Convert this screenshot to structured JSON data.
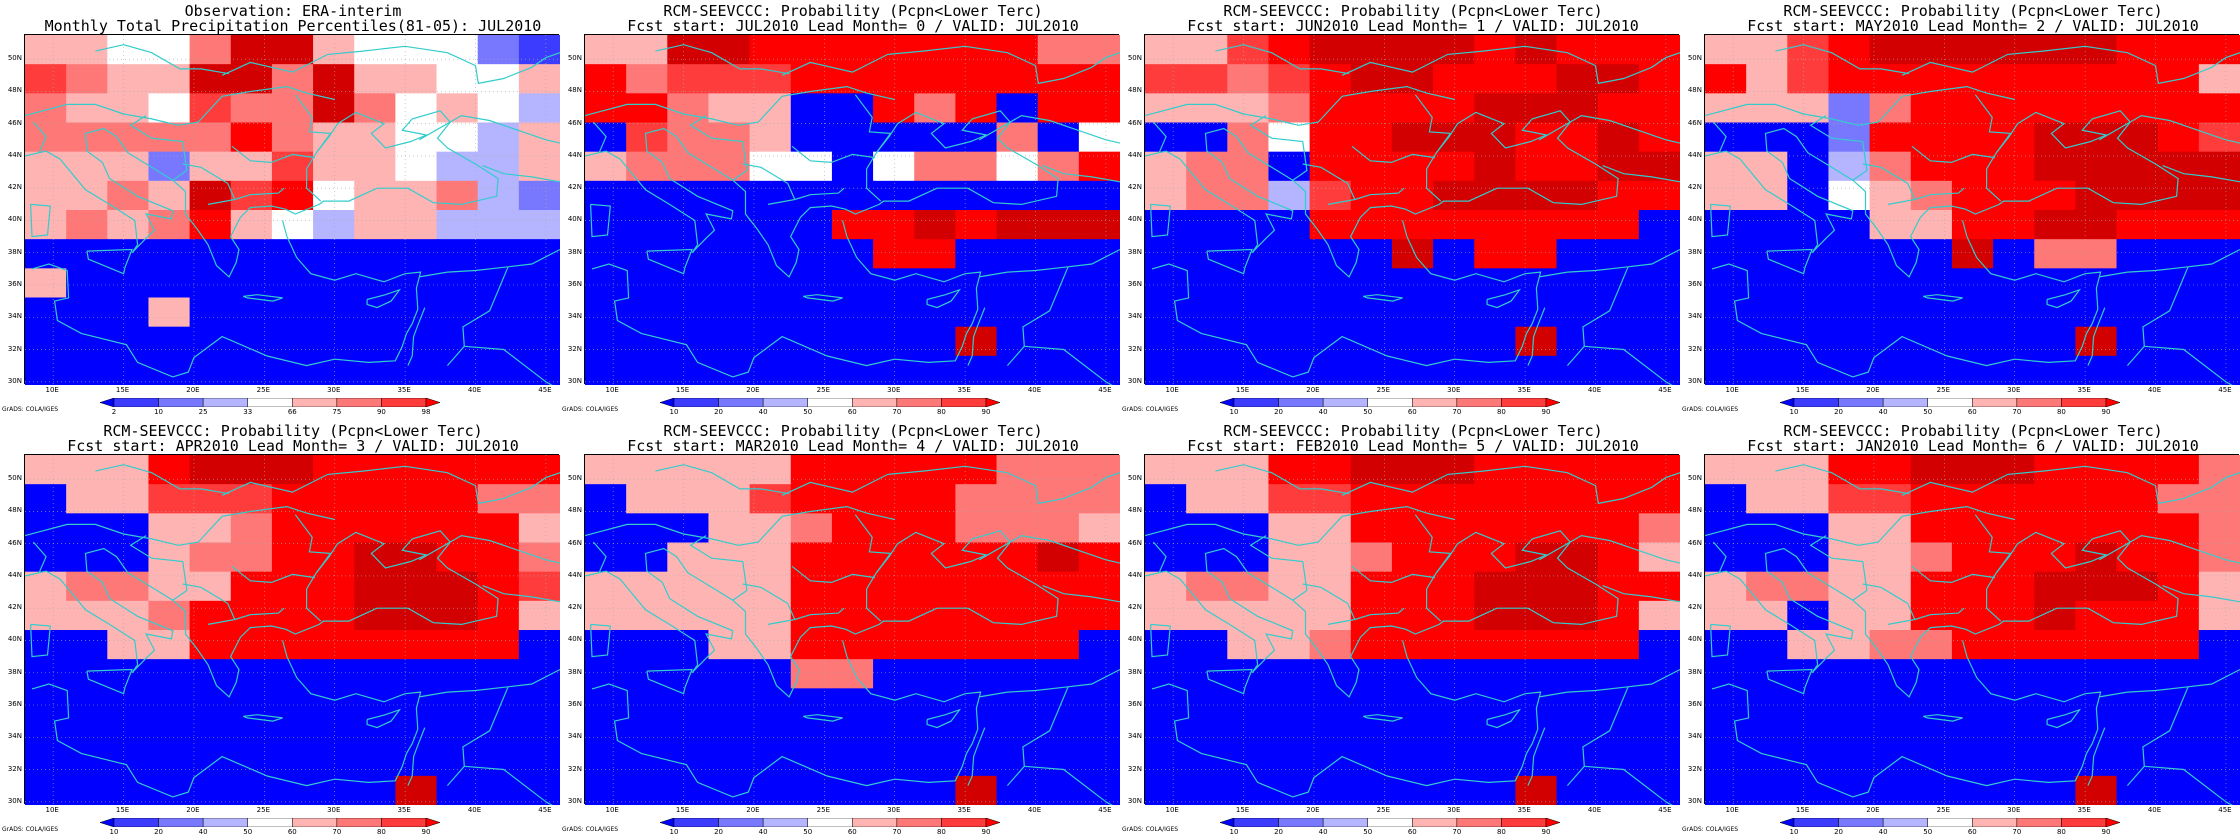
{
  "palettes": {
    "obs": [
      "#0000ff",
      "#3c3cff",
      "#7878ff",
      "#b4b4ff",
      "#ffffff",
      "#ffb4b4",
      "#ff7878",
      "#ff3c3c",
      "#ff0000",
      "#d20000",
      "#a00000"
    ],
    "prob": [
      "#0000ff",
      "#3c3cff",
      "#7878ff",
      "#b4b4ff",
      "#ffffff",
      "#ffb4b4",
      "#ff7878",
      "#ff3c3c",
      "#ff0000",
      "#d20000",
      "#a00000"
    ]
  },
  "colorbars": {
    "obs": {
      "labels": [
        "2",
        "10",
        "25",
        "33",
        "66",
        "75",
        "90",
        "98"
      ],
      "colors": [
        "#0000ff",
        "#3c3cff",
        "#7878ff",
        "#b4b4ff",
        "#ffffff",
        "#ffb4b4",
        "#ff7878",
        "#ff3c3c",
        "#ff0000"
      ]
    },
    "prob": {
      "labels": [
        "10",
        "20",
        "40",
        "50",
        "60",
        "70",
        "80",
        "90"
      ],
      "colors": [
        "#0000ff",
        "#3c3cff",
        "#7878ff",
        "#b4b4ff",
        "#ffffff",
        "#ffb4b4",
        "#ff7878",
        "#ff3c3c",
        "#ff0000"
      ]
    }
  },
  "axes": {
    "lat_labels": [
      "50N",
      "48N",
      "46N",
      "44N",
      "42N",
      "40N",
      "38N",
      "36N",
      "34N",
      "32N",
      "30N"
    ],
    "lon_labels": [
      "10E",
      "15E",
      "20E",
      "25E",
      "30E",
      "35E",
      "40E",
      "45E"
    ]
  },
  "credit": "GrADS: COLA/IGES",
  "panels": [
    {
      "title1": "Observation: ERA-interim",
      "title2": "Monthly Total Precipitation Percentiles(81-05): JUL2010",
      "colorbar": "obs",
      "grid": [
        "5544699544421",
        "7655996955445",
        "6554766964543",
        "6666686554435",
        "5552557554335",
        "5565978455632",
        "5656854355333",
        "0000000000000",
        "5000000000000",
        "0005000000000",
        "0000000000000",
        "0000000000000"
      ]
    },
    {
      "title1": "RCM-SEEVCCC: Probability (Pcpn<Lower Terc)",
      "title2": "Fcst start: JUL2010  Lead Month= 0 / VALID: JUL2010",
      "colorbar": "prob",
      "grid": [
        "5599888888866",
        "8677788888888",
        "8865500868088",
        "0766500000604",
        "5666440466468",
        "0000000000000",
        "0000008898999",
        "0000000880000",
        "0000000000000",
        "0000000000000",
        "0000000009000",
        "0000000000000"
      ]
    },
    {
      "title1": "RCM-SEEVCCC: Probability (Pcpn<Lower Terc)",
      "title2": "Fcst start: JUN2010  Lead Month= 1 / VALID: JUL2010",
      "colorbar": "prob",
      "grid": [
        "5578999989888",
        "7767899888998",
        "5556888899988",
        "0064889998898",
        "5660888898899",
        "5663788999988",
        "0000888888880",
        "0000009088000",
        "0000000000000",
        "0000000000000",
        "0000000009000",
        "0000000000000"
      ]
    },
    {
      "title1": "RCM-SEEVCCC: Probability (Pcpn<Lower Terc)",
      "title2": "Fcst start: MAY2010  Lead Month= 2 / VALID: JUL2010",
      "colorbar": "prob",
      "grid": [
        "5578999999888",
        "8578888888885",
        "5552688888888",
        "0002888899987",
        "5503688899999",
        "5504568889999",
        "0000558899888",
        "0000009066000",
        "0000000000000",
        "0000000000000",
        "0000000009000",
        "0000000000000"
      ]
    },
    {
      "title1": "RCM-SEEVCCC: Probability (Pcpn<Lower Terc)",
      "title2": "Fcst start: APR2010  Lead Month= 3 / VALID: JUL2010",
      "colorbar": "prob",
      "grid": [
        "5558999888888",
        "0557778888866",
        "0005568888885",
        "0005668899886",
        "5665588899987",
        "5556888899985",
        "0055888888880",
        "0000000000000",
        "0000000000000",
        "0000000000000",
        "0000000000000",
        "0000000009000"
      ]
    },
    {
      "title1": "RCM-SEEVCCC: Probability (Pcpn<Lower Terc)",
      "title2": "Fcst start: MAR2010  Lead Month= 4 / VALID: JUL2010",
      "colorbar": "prob",
      "grid": [
        "5555588888666",
        "0555788886666",
        "0005568886665",
        "0055588888898",
        "5555588888888",
        "5555588888888",
        "0005588888880",
        "0000066000000",
        "0000000000000",
        "0000000000000",
        "0000000000000",
        "0000000009000"
      ]
    },
    {
      "title1": "RCM-SEEVCCC: Probability (Pcpn<Lower Terc)",
      "title2": "Fcst start: FEB2010  Lead Month= 5 / VALID: JUL2010",
      "colorbar": "prob",
      "grid": [
        "5558899988888",
        "0557788888888",
        "0005588888886",
        "0005568889985",
        "5665588899988",
        "5555588899985",
        "0055688888880",
        "0000000000000",
        "0000000000000",
        "0000000000000",
        "0000000000000",
        "0000000009000"
      ]
    },
    {
      "title1": "RCM-SEEVCCC: Probability (Pcpn<Lower Terc)",
      "title2": "Fcst start: JAN2010  Lead Month= 6 / VALID: JUL2010",
      "colorbar": "prob",
      "grid": [
        "5558899988886",
        "0557788888866",
        "0005588888886",
        "0005568889886",
        "5665588899985",
        "5505588898885",
        "0055668888880",
        "0000000000000",
        "0000000000000",
        "0000000000000",
        "0000000000000",
        "0000000009000"
      ]
    }
  ]
}
